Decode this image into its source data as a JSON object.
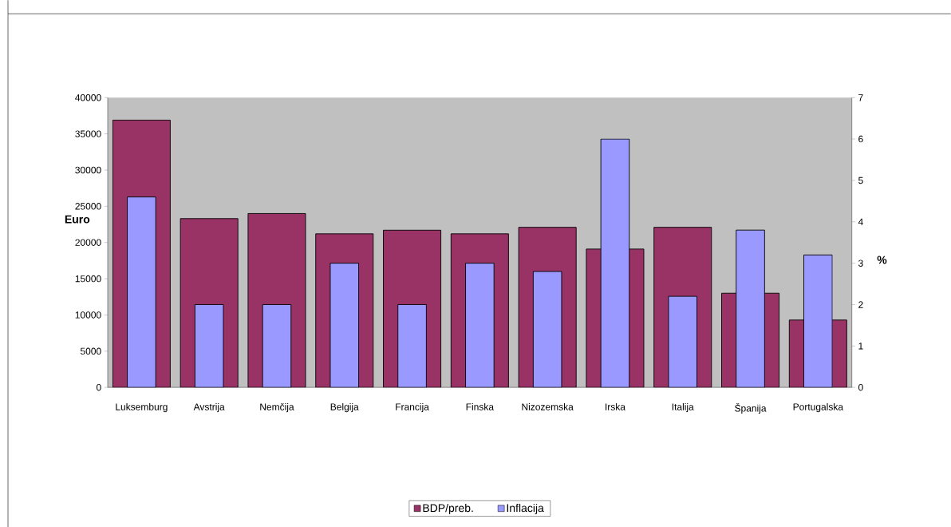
{
  "chart_data": {
    "type": "bar",
    "ylabel": "Euro",
    "y2label": "%",
    "categories": [
      "Luksemburg",
      "Avstrija",
      "Nemčija",
      "Belgija",
      "Francija",
      "Finska",
      "Nizozemska",
      "Irska",
      "Italija",
      "Španija",
      "Portugalska"
    ],
    "series": [
      {
        "name": "BDP/preb.",
        "color": "#993366",
        "values": [
          36900,
          23300,
          24000,
          21200,
          21700,
          21200,
          22100,
          19100,
          22100,
          13000,
          9300
        ]
      },
      {
        "name": "Inflacija",
        "color": "#9999ff",
        "axis": "y2",
        "values": [
          4.6,
          2.0,
          2.0,
          3.0,
          2.0,
          3.0,
          2.8,
          6.0,
          2.2,
          3.8,
          3.2
        ]
      }
    ],
    "ylim": [
      0,
      40000
    ],
    "yticks": [
      0,
      5000,
      10000,
      15000,
      20000,
      25000,
      30000,
      35000,
      40000
    ],
    "y2lim": [
      0,
      7
    ],
    "y2ticks": [
      0,
      1,
      2,
      3,
      4,
      5,
      6,
      7
    ],
    "legend": "bottom",
    "grid": false
  }
}
